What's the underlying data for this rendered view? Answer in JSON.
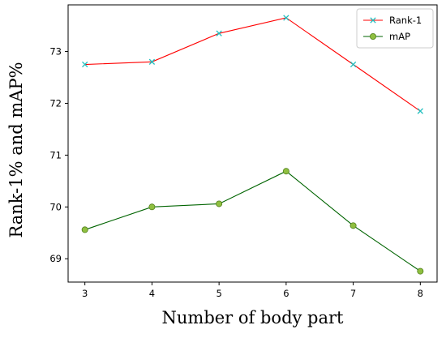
{
  "chart_data": {
    "type": "line",
    "x": [
      3,
      4,
      5,
      6,
      7,
      8
    ],
    "series": [
      {
        "name": "Rank-1",
        "values": [
          72.75,
          72.8,
          73.35,
          73.65,
          72.75,
          71.85
        ],
        "color": "#ff0000",
        "marker": "x",
        "marker_color": "#1fbfbf"
      },
      {
        "name": "mAP",
        "values": [
          69.56,
          70.0,
          70.06,
          70.69,
          69.64,
          68.76
        ],
        "color": "#006400",
        "marker": "circle",
        "marker_color": "#8fbf40"
      }
    ],
    "xlabel": "Number of body part",
    "ylabel": "Rank-1% and mAP%",
    "xlim": [
      2.75,
      8.25
    ],
    "ylim": [
      68.55,
      73.9
    ],
    "xticks": [
      3,
      4,
      5,
      6,
      7,
      8
    ],
    "yticks": [
      69,
      70,
      71,
      72,
      73
    ],
    "grid": false,
    "legend_position": "top-right"
  }
}
